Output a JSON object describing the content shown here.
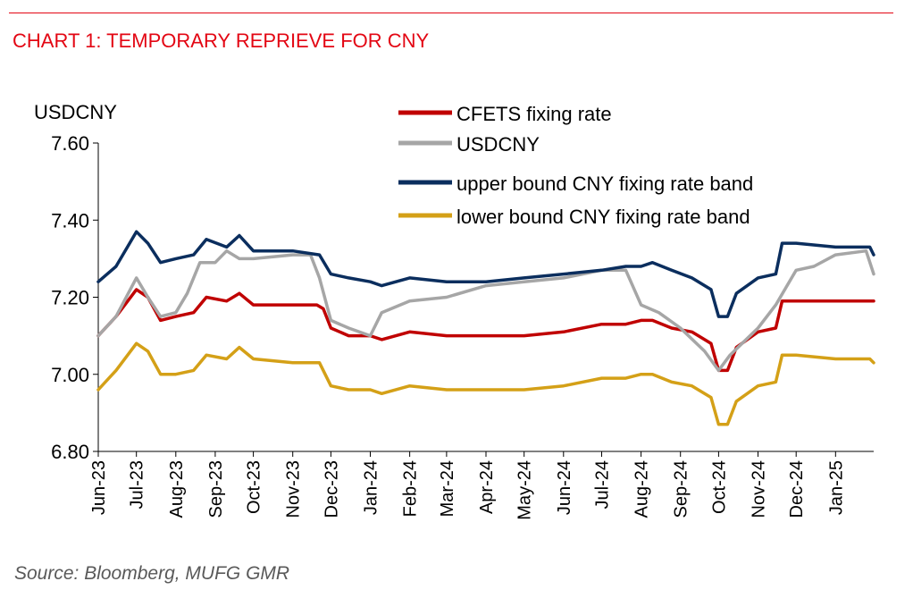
{
  "header": {
    "title": "CHART 1: TEMPORARY REPRIEVE FOR CNY"
  },
  "footer": {
    "source": "Source: Bloomberg, MUFG GMR"
  },
  "chart_data": {
    "type": "line",
    "title": "CHART 1: TEMPORARY REPRIEVE FOR CNY",
    "ylabel": "USDCNY",
    "xlabel": "",
    "ylim": [
      6.8,
      7.6
    ],
    "yticks": [
      "7.60",
      "7.40",
      "7.20",
      "7.00",
      "6.80"
    ],
    "xticks": [
      "Jun-23",
      "Jul-23",
      "Aug-23",
      "Sep-23",
      "Oct-23",
      "Nov-23",
      "Dec-23",
      "Jan-24",
      "Feb-24",
      "Mar-24",
      "Apr-24",
      "May-24",
      "Jun-24",
      "Jul-24",
      "Aug-24",
      "Sep-24",
      "Oct-24",
      "Nov-24",
      "Dec-24",
      "Jan-25"
    ],
    "legend_position": "top-right",
    "grid": false,
    "series": [
      {
        "name": "CFETS fixing rate",
        "color": "#c00000",
        "points": [
          [
            "2023-06-01",
            7.1
          ],
          [
            "2023-06-15",
            7.15
          ],
          [
            "2023-07-01",
            7.22
          ],
          [
            "2023-07-10",
            7.2
          ],
          [
            "2023-07-20",
            7.14
          ],
          [
            "2023-08-01",
            7.15
          ],
          [
            "2023-08-15",
            7.16
          ],
          [
            "2023-08-25",
            7.2
          ],
          [
            "2023-09-10",
            7.19
          ],
          [
            "2023-09-20",
            7.21
          ],
          [
            "2023-10-01",
            7.18
          ],
          [
            "2023-11-01",
            7.18
          ],
          [
            "2023-11-20",
            7.18
          ],
          [
            "2023-11-25",
            7.17
          ],
          [
            "2023-12-01",
            7.12
          ],
          [
            "2023-12-15",
            7.1
          ],
          [
            "2024-01-01",
            7.1
          ],
          [
            "2024-01-10",
            7.09
          ],
          [
            "2024-02-01",
            7.11
          ],
          [
            "2024-03-01",
            7.1
          ],
          [
            "2024-04-01",
            7.1
          ],
          [
            "2024-05-01",
            7.1
          ],
          [
            "2024-06-01",
            7.11
          ],
          [
            "2024-07-01",
            7.13
          ],
          [
            "2024-07-20",
            7.13
          ],
          [
            "2024-08-01",
            7.14
          ],
          [
            "2024-08-10",
            7.14
          ],
          [
            "2024-08-25",
            7.12
          ],
          [
            "2024-09-10",
            7.11
          ],
          [
            "2024-09-25",
            7.08
          ],
          [
            "2024-10-01",
            7.01
          ],
          [
            "2024-10-08",
            7.01
          ],
          [
            "2024-10-15",
            7.07
          ],
          [
            "2024-11-01",
            7.11
          ],
          [
            "2024-11-15",
            7.12
          ],
          [
            "2024-11-20",
            7.19
          ],
          [
            "2024-12-01",
            7.19
          ],
          [
            "2025-01-01",
            7.19
          ],
          [
            "2025-01-31",
            7.19
          ]
        ]
      },
      {
        "name": "USDCNY",
        "color": "#a6a6a6",
        "points": [
          [
            "2023-06-01",
            7.1
          ],
          [
            "2023-06-15",
            7.15
          ],
          [
            "2023-07-01",
            7.25
          ],
          [
            "2023-07-10",
            7.2
          ],
          [
            "2023-07-20",
            7.15
          ],
          [
            "2023-08-01",
            7.16
          ],
          [
            "2023-08-10",
            7.21
          ],
          [
            "2023-08-20",
            7.29
          ],
          [
            "2023-09-01",
            7.29
          ],
          [
            "2023-09-10",
            7.32
          ],
          [
            "2023-09-20",
            7.3
          ],
          [
            "2023-10-01",
            7.3
          ],
          [
            "2023-11-01",
            7.31
          ],
          [
            "2023-11-15",
            7.31
          ],
          [
            "2023-11-22",
            7.25
          ],
          [
            "2023-12-01",
            7.14
          ],
          [
            "2023-12-15",
            7.12
          ],
          [
            "2024-01-01",
            7.1
          ],
          [
            "2024-01-10",
            7.16
          ],
          [
            "2024-02-01",
            7.19
          ],
          [
            "2024-03-01",
            7.2
          ],
          [
            "2024-04-01",
            7.23
          ],
          [
            "2024-05-01",
            7.24
          ],
          [
            "2024-06-01",
            7.25
          ],
          [
            "2024-07-01",
            7.27
          ],
          [
            "2024-07-20",
            7.27
          ],
          [
            "2024-08-01",
            7.18
          ],
          [
            "2024-08-15",
            7.16
          ],
          [
            "2024-09-01",
            7.12
          ],
          [
            "2024-09-20",
            7.06
          ],
          [
            "2024-10-01",
            7.01
          ],
          [
            "2024-10-10",
            7.05
          ],
          [
            "2024-11-01",
            7.12
          ],
          [
            "2024-11-15",
            7.18
          ],
          [
            "2024-12-01",
            7.27
          ],
          [
            "2024-12-15",
            7.28
          ],
          [
            "2025-01-01",
            7.31
          ],
          [
            "2025-01-25",
            7.32
          ],
          [
            "2025-01-31",
            7.26
          ]
        ]
      },
      {
        "name": "upper bound CNY fixing rate band",
        "color": "#0b2e5e",
        "points": [
          [
            "2023-06-01",
            7.24
          ],
          [
            "2023-06-15",
            7.28
          ],
          [
            "2023-07-01",
            7.37
          ],
          [
            "2023-07-10",
            7.34
          ],
          [
            "2023-07-20",
            7.29
          ],
          [
            "2023-08-01",
            7.3
          ],
          [
            "2023-08-15",
            7.31
          ],
          [
            "2023-08-25",
            7.35
          ],
          [
            "2023-09-10",
            7.33
          ],
          [
            "2023-09-20",
            7.36
          ],
          [
            "2023-10-01",
            7.32
          ],
          [
            "2023-11-01",
            7.32
          ],
          [
            "2023-11-22",
            7.31
          ],
          [
            "2023-12-01",
            7.26
          ],
          [
            "2023-12-15",
            7.25
          ],
          [
            "2024-01-01",
            7.24
          ],
          [
            "2024-01-10",
            7.23
          ],
          [
            "2024-02-01",
            7.25
          ],
          [
            "2024-03-01",
            7.24
          ],
          [
            "2024-04-01",
            7.24
          ],
          [
            "2024-05-01",
            7.25
          ],
          [
            "2024-06-01",
            7.26
          ],
          [
            "2024-07-01",
            7.27
          ],
          [
            "2024-07-20",
            7.28
          ],
          [
            "2024-08-01",
            7.28
          ],
          [
            "2024-08-10",
            7.29
          ],
          [
            "2024-08-25",
            7.27
          ],
          [
            "2024-09-10",
            7.25
          ],
          [
            "2024-09-25",
            7.22
          ],
          [
            "2024-10-01",
            7.15
          ],
          [
            "2024-10-08",
            7.15
          ],
          [
            "2024-10-15",
            7.21
          ],
          [
            "2024-11-01",
            7.25
          ],
          [
            "2024-11-15",
            7.26
          ],
          [
            "2024-11-20",
            7.34
          ],
          [
            "2024-12-01",
            7.34
          ],
          [
            "2025-01-01",
            7.33
          ],
          [
            "2025-01-28",
            7.33
          ],
          [
            "2025-01-31",
            7.31
          ]
        ]
      },
      {
        "name": "lower bound CNY fixing rate band",
        "color": "#d4a017",
        "points": [
          [
            "2023-06-01",
            6.96
          ],
          [
            "2023-06-15",
            7.01
          ],
          [
            "2023-07-01",
            7.08
          ],
          [
            "2023-07-10",
            7.06
          ],
          [
            "2023-07-20",
            7.0
          ],
          [
            "2023-08-01",
            7.0
          ],
          [
            "2023-08-15",
            7.01
          ],
          [
            "2023-08-25",
            7.05
          ],
          [
            "2023-09-10",
            7.04
          ],
          [
            "2023-09-20",
            7.07
          ],
          [
            "2023-10-01",
            7.04
          ],
          [
            "2023-11-01",
            7.03
          ],
          [
            "2023-11-22",
            7.03
          ],
          [
            "2023-12-01",
            6.97
          ],
          [
            "2023-12-15",
            6.96
          ],
          [
            "2024-01-01",
            6.96
          ],
          [
            "2024-01-10",
            6.95
          ],
          [
            "2024-02-01",
            6.97
          ],
          [
            "2024-03-01",
            6.96
          ],
          [
            "2024-04-01",
            6.96
          ],
          [
            "2024-05-01",
            6.96
          ],
          [
            "2024-06-01",
            6.97
          ],
          [
            "2024-07-01",
            6.99
          ],
          [
            "2024-07-20",
            6.99
          ],
          [
            "2024-08-01",
            7.0
          ],
          [
            "2024-08-10",
            7.0
          ],
          [
            "2024-08-25",
            6.98
          ],
          [
            "2024-09-10",
            6.97
          ],
          [
            "2024-09-25",
            6.94
          ],
          [
            "2024-10-01",
            6.87
          ],
          [
            "2024-10-08",
            6.87
          ],
          [
            "2024-10-15",
            6.93
          ],
          [
            "2024-11-01",
            6.97
          ],
          [
            "2024-11-15",
            6.98
          ],
          [
            "2024-11-20",
            7.05
          ],
          [
            "2024-12-01",
            7.05
          ],
          [
            "2025-01-01",
            7.04
          ],
          [
            "2025-01-28",
            7.04
          ],
          [
            "2025-01-31",
            7.03
          ]
        ]
      }
    ]
  }
}
